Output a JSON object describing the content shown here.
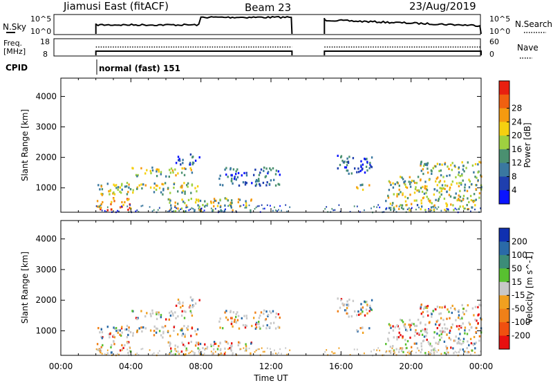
{
  "header": {
    "radar": "Jiamusi East (fitACF)",
    "beam": "Beam 23",
    "date": "23/Aug/2019"
  },
  "strips": {
    "nsky_label": "N.Sky",
    "nsky_ticks": [
      "10^5",
      "10^0"
    ],
    "nsearch_label": "N.Search",
    "nsearch_ticks": [
      "10^5",
      "10^0"
    ],
    "freq_label_1": "Freq.",
    "freq_label_2": "[MHz]",
    "freq_ticks": [
      "18",
      "8"
    ],
    "nave_label": "Nave",
    "nave_ticks": [
      "60",
      "0"
    ],
    "cpid_label": "CPID",
    "cpid_text": "normal (fast) 151"
  },
  "chart_data": [
    {
      "type": "heatmap",
      "title": "Power",
      "ylabel": "Slant Range [km]",
      "colorbar_label": "Power [dB]",
      "yticks": [
        "1000",
        "2000",
        "3000",
        "4000"
      ],
      "ylim": [
        200,
        4600
      ],
      "xlim_hours": [
        0,
        24
      ],
      "colorbar_ticks": [
        "4",
        "8",
        "12",
        "16",
        "20",
        "24",
        "28"
      ],
      "colorbar_colors": [
        "#0a14ff",
        "#1f3fae",
        "#3a78a0",
        "#4a9070",
        "#9ed040",
        "#f5d010",
        "#f59a10",
        "#f06010",
        "#e82010"
      ],
      "observation_periods_hours": [
        [
          2.0,
          13.2
        ],
        [
          15.05,
          24.0
        ]
      ],
      "echo_regions": [
        {
          "t0": 2.0,
          "t1": 4.0,
          "r0": 300,
          "r1": 700,
          "level": "high"
        },
        {
          "t0": 2.0,
          "t1": 8.0,
          "r0": 800,
          "r1": 1200,
          "level": "mid"
        },
        {
          "t0": 4.0,
          "t1": 7.5,
          "r0": 1400,
          "r1": 1700,
          "level": "mid"
        },
        {
          "t0": 6.5,
          "t1": 8.0,
          "r0": 1800,
          "r1": 2150,
          "level": "low"
        },
        {
          "t0": 6.0,
          "t1": 11.0,
          "r0": 250,
          "r1": 700,
          "level": "mid"
        },
        {
          "t0": 9.0,
          "t1": 12.5,
          "r0": 1100,
          "r1": 1700,
          "level": "low"
        },
        {
          "t0": 15.6,
          "t1": 17.8,
          "r0": 1500,
          "r1": 2100,
          "level": "low"
        },
        {
          "t0": 16.8,
          "t1": 17.6,
          "r0": 900,
          "r1": 1150,
          "level": "mid"
        },
        {
          "t0": 18.5,
          "t1": 24.0,
          "r0": 300,
          "r1": 1400,
          "level": "mid"
        },
        {
          "t0": 20.5,
          "t1": 24.0,
          "r0": 1400,
          "r1": 1900,
          "level": "mid"
        }
      ]
    },
    {
      "type": "heatmap",
      "title": "Velocity",
      "ylabel": "Slant Range [km]",
      "colorbar_label": "Velocity [m s^-1]",
      "yticks": [
        "1000",
        "2000",
        "3000",
        "4000"
      ],
      "ylim": [
        200,
        4600
      ],
      "xlim_hours": [
        0,
        24
      ],
      "colorbar_ticks": [
        "200",
        "100",
        "50",
        "15",
        "-15",
        "-50",
        "-100",
        "-200"
      ],
      "colorbar_colors": [
        "#1030b0",
        "#2a6aa8",
        "#3c8c78",
        "#58c030",
        "#c8c8c8",
        "#f0a020",
        "#f08018",
        "#f05010",
        "#e81010"
      ],
      "xticks": [
        "00:00",
        "04:00",
        "08:00",
        "12:00",
        "16:00",
        "20:00",
        "00:00"
      ],
      "xlabel": "Time UT"
    }
  ]
}
